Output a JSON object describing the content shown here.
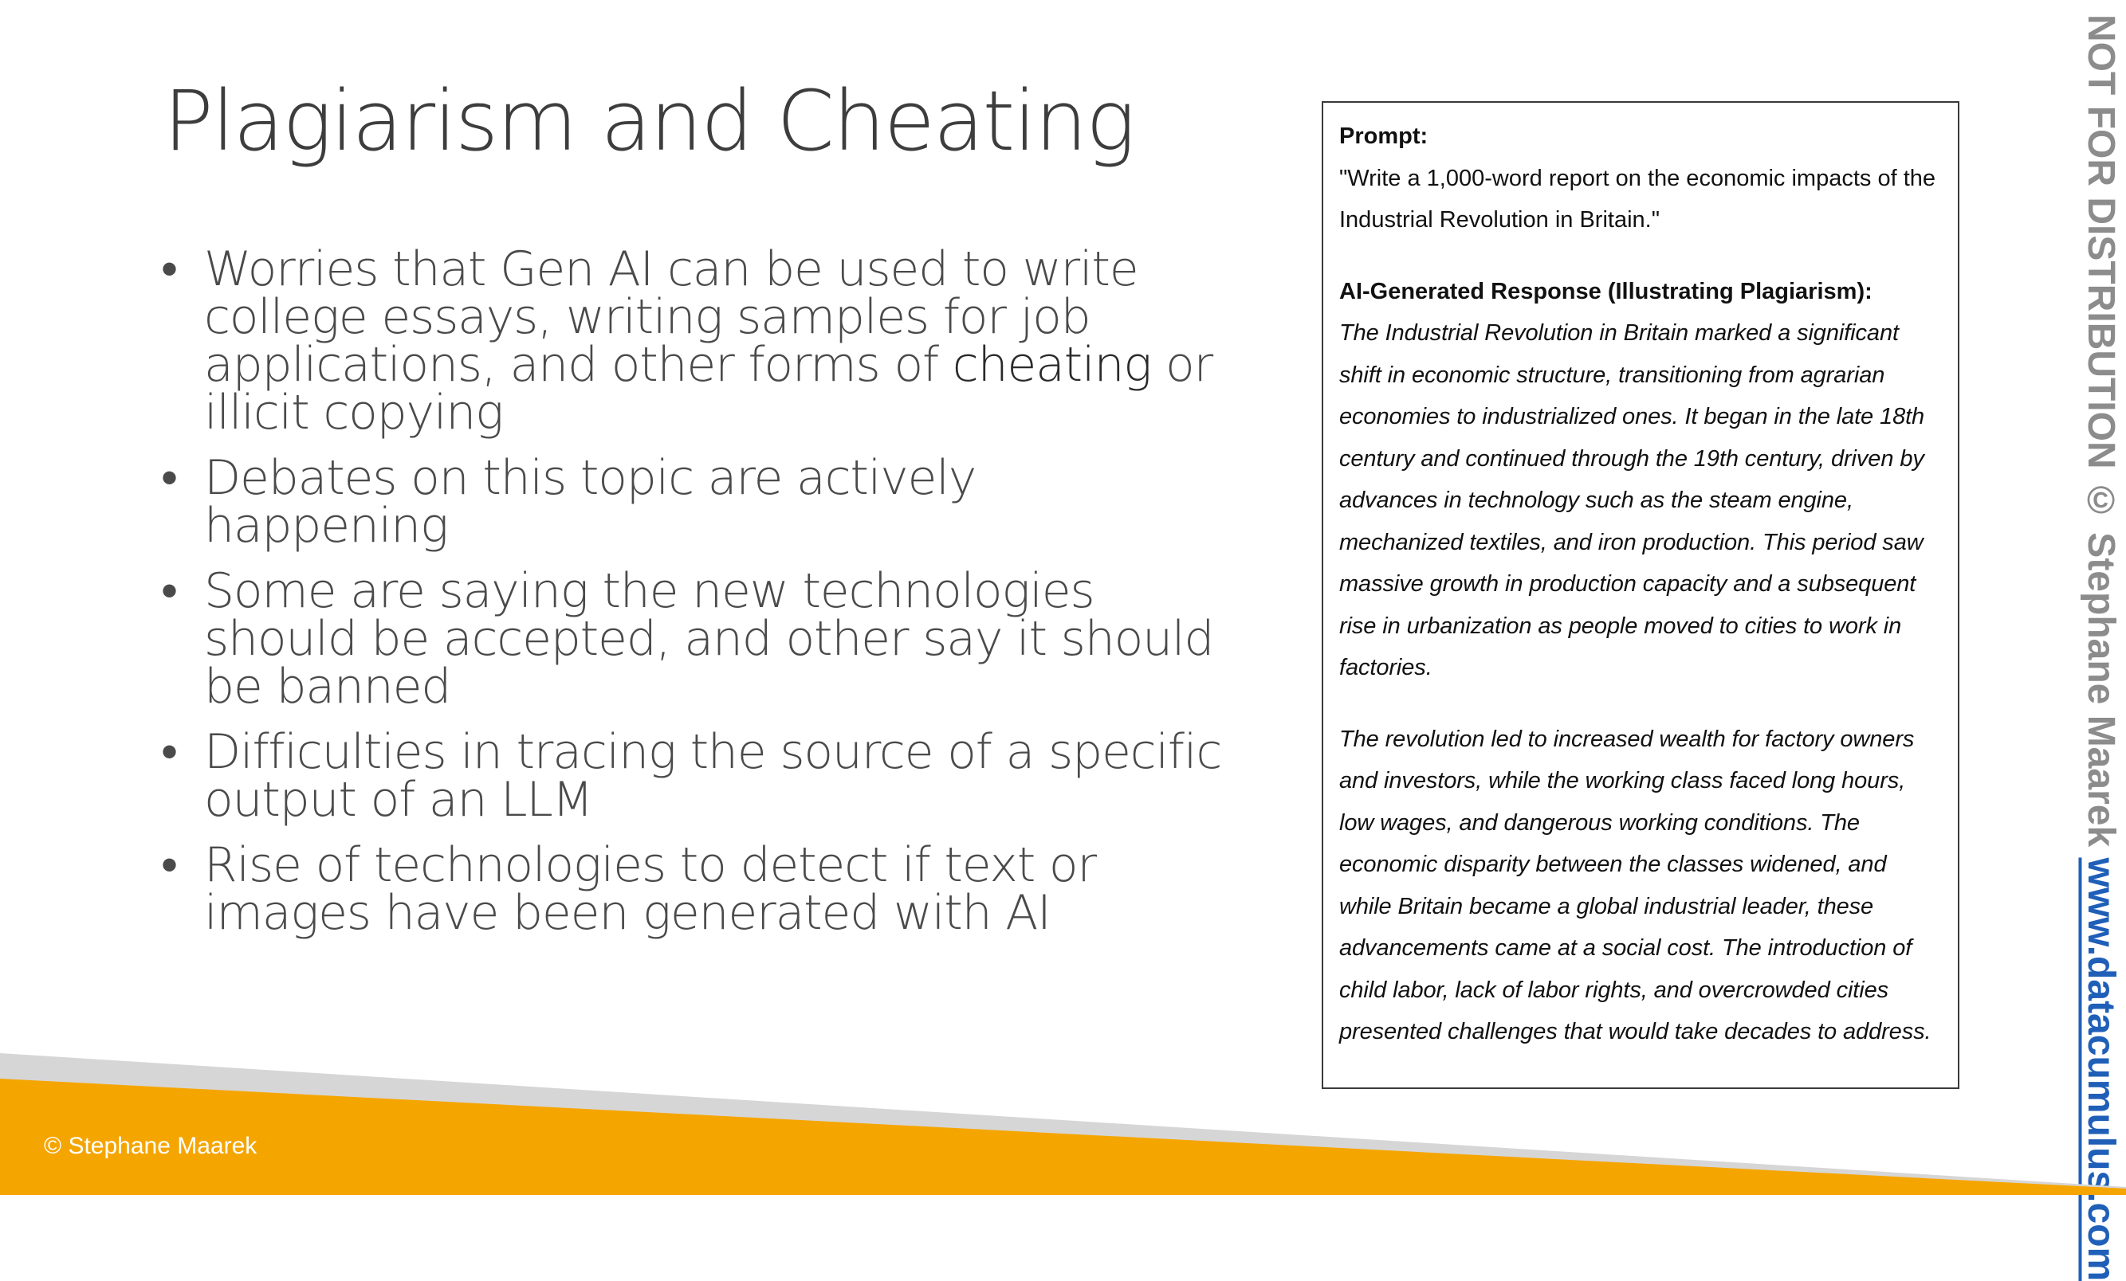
{
  "title": "Plagiarism and Cheating",
  "bullets": [
    {
      "before": "Worries that Gen AI can be used to write college essays, writing samples for job applications, and other forms of ",
      "emphasis": "cheating",
      "after": " or illicit copying"
    },
    {
      "before": "Debates on this topic are actively happening",
      "emphasis": "",
      "after": ""
    },
    {
      "before": "Some are saying the new technologies should be accepted, and other say it should be banned",
      "emphasis": "",
      "after": ""
    },
    {
      "before": "Difficulties in tracing the source of a specific output of an LLM",
      "emphasis": "",
      "after": ""
    },
    {
      "before": "Rise of technologies to detect if text or images have been generated with AI",
      "emphasis": "",
      "after": ""
    }
  ],
  "example": {
    "prompt_label": "Prompt:",
    "prompt_text": "\"Write a 1,000-word report on the economic impacts of the Industrial Revolution in Britain.\"",
    "response_label": "AI-Generated Response (Illustrating Plagiarism):",
    "response_paragraph_1": "The Industrial Revolution in Britain marked a significant shift in economic structure, transitioning from agrarian economies to industrialized ones. It began in the late 18th century and continued through the 19th century, driven by advances in technology such as the steam engine, mechanized textiles, and iron production. This period saw massive growth in production capacity and a subsequent rise in urbanization as people moved to cities to work in factories.",
    "response_paragraph_2": "The revolution led to increased wealth for factory owners and investors, while the working class faced long hours, low wages, and dangerous working conditions. The economic disparity between the classes widened, and while Britain became a global industrial leader, these advancements came at a social cost. The introduction of child labor, lack of labor rights, and overcrowded cities presented challenges that would take decades to address."
  },
  "side_notice": "NOT FOR DISTRIBUTION © Stephane Maarek",
  "side_link": "www.datacumulus.com",
  "footer_copyright": "© Stephane Maarek",
  "colors": {
    "accent_orange": "#f5a500",
    "band_gray": "#d6d6d6",
    "link_blue": "#1f5fb8",
    "title_gray": "#3d3d3d"
  }
}
